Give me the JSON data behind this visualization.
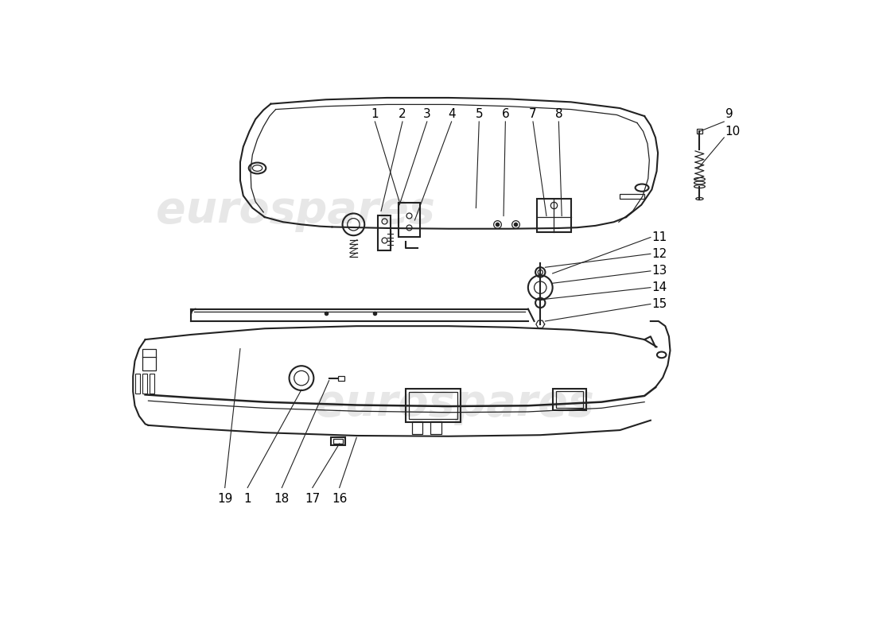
{
  "background_color": "#ffffff",
  "watermark_text": "eurospares",
  "watermark_color_top": "#d8d8d8",
  "watermark_color_bot": "#d8d8d8",
  "line_color": "#222222",
  "label_color": "#000000",
  "label_fontsize": 11,
  "top_labels": [
    [
      "1",
      430,
      730
    ],
    [
      "2",
      475,
      730
    ],
    [
      "3",
      515,
      730
    ],
    [
      "4",
      555,
      730
    ],
    [
      "5",
      600,
      730
    ],
    [
      "6",
      643,
      730
    ],
    [
      "7",
      688,
      730
    ],
    [
      "8",
      730,
      730
    ],
    [
      "9",
      1000,
      730
    ],
    [
      "10",
      1000,
      705
    ]
  ],
  "bottom_right_labels": [
    [
      "11",
      880,
      535
    ],
    [
      "12",
      880,
      508
    ],
    [
      "13",
      880,
      480
    ],
    [
      "14",
      880,
      453
    ],
    [
      "15",
      880,
      425
    ]
  ],
  "bottom_labels": [
    [
      "19",
      185,
      118
    ],
    [
      "1",
      220,
      118
    ],
    [
      "18",
      275,
      118
    ],
    [
      "17",
      325,
      118
    ],
    [
      "16",
      370,
      118
    ]
  ]
}
